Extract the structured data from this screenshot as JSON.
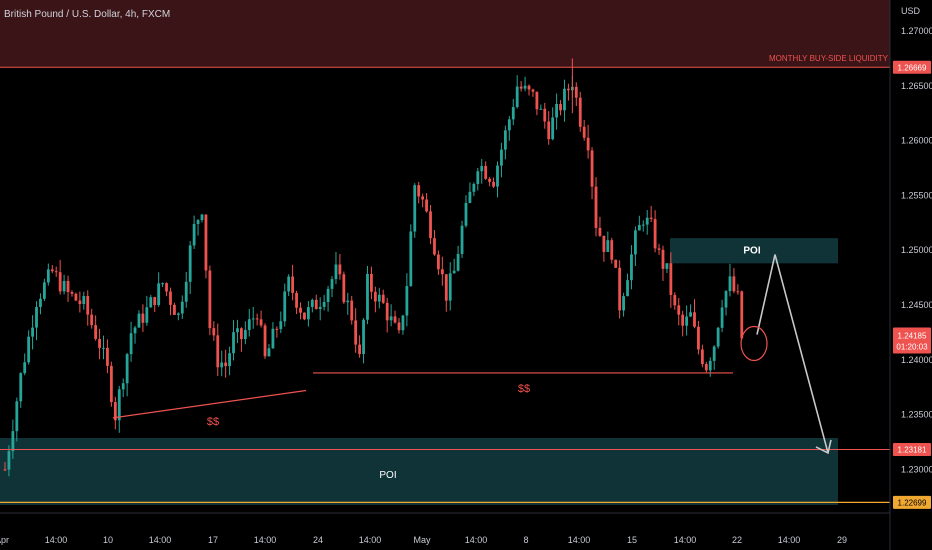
{
  "header": {
    "symbol_title": "British Pound / U.S. Dollar, 4h, FXCM",
    "currency": "USD"
  },
  "colors": {
    "bull": "#26a69a",
    "bear": "#ef5350",
    "supply_zone": "#3a1416",
    "poi_zone": "#0f3337",
    "liquidity_line": "#ef5350",
    "orange_line": "#f0a830",
    "arrow": "#c8c8c8"
  },
  "chart_data": {
    "type": "candlestick",
    "y_range": [
      1.2265,
      1.2728
    ],
    "y_ticks": [
      "1.27000",
      "1.26500",
      "1.26000",
      "1.25500",
      "1.25000",
      "1.24500",
      "1.24000",
      "1.23500",
      "1.23000"
    ],
    "x_ticks": [
      "Apr",
      "14:00",
      "10",
      "14:00",
      "17",
      "14:00",
      "24",
      "14:00",
      "May",
      "14:00",
      "8",
      "14:00",
      "15",
      "14:00",
      "22",
      "14:00",
      "29"
    ],
    "anchors": [
      {
        "i": 0,
        "p": 1.23
      },
      {
        "i": 4,
        "p": 1.2385
      },
      {
        "i": 8,
        "p": 1.2455
      },
      {
        "i": 12,
        "p": 1.248
      },
      {
        "i": 16,
        "p": 1.246
      },
      {
        "i": 20,
        "p": 1.245
      },
      {
        "i": 24,
        "p": 1.2415
      },
      {
        "i": 26,
        "p": 1.239
      },
      {
        "i": 28,
        "p": 1.235
      },
      {
        "i": 32,
        "p": 1.2425
      },
      {
        "i": 36,
        "p": 1.2445
      },
      {
        "i": 40,
        "p": 1.247
      },
      {
        "i": 44,
        "p": 1.244
      },
      {
        "i": 48,
        "p": 1.252
      },
      {
        "i": 50,
        "p": 1.254
      },
      {
        "i": 52,
        "p": 1.243
      },
      {
        "i": 54,
        "p": 1.24
      },
      {
        "i": 56,
        "p": 1.2395
      },
      {
        "i": 58,
        "p": 1.242
      },
      {
        "i": 60,
        "p": 1.242
      },
      {
        "i": 64,
        "p": 1.2445
      },
      {
        "i": 66,
        "p": 1.24
      },
      {
        "i": 70,
        "p": 1.244
      },
      {
        "i": 72,
        "p": 1.247
      },
      {
        "i": 76,
        "p": 1.244
      },
      {
        "i": 80,
        "p": 1.2455
      },
      {
        "i": 84,
        "p": 1.248
      },
      {
        "i": 88,
        "p": 1.244
      },
      {
        "i": 90,
        "p": 1.24
      },
      {
        "i": 92,
        "p": 1.247
      },
      {
        "i": 96,
        "p": 1.245
      },
      {
        "i": 100,
        "p": 1.242
      },
      {
        "i": 102,
        "p": 1.247
      },
      {
        "i": 104,
        "p": 1.256
      },
      {
        "i": 106,
        "p": 1.2545
      },
      {
        "i": 108,
        "p": 1.252
      },
      {
        "i": 110,
        "p": 1.249
      },
      {
        "i": 112,
        "p": 1.246
      },
      {
        "i": 114,
        "p": 1.248
      },
      {
        "i": 116,
        "p": 1.252
      },
      {
        "i": 120,
        "p": 1.258
      },
      {
        "i": 124,
        "p": 1.2565
      },
      {
        "i": 128,
        "p": 1.262
      },
      {
        "i": 130,
        "p": 1.265
      },
      {
        "i": 134,
        "p": 1.264
      },
      {
        "i": 138,
        "p": 1.261
      },
      {
        "i": 140,
        "p": 1.2625
      },
      {
        "i": 144,
        "p": 1.2655
      },
      {
        "i": 146,
        "p": 1.262
      },
      {
        "i": 148,
        "p": 1.26
      },
      {
        "i": 150,
        "p": 1.2525
      },
      {
        "i": 152,
        "p": 1.2505
      },
      {
        "i": 154,
        "p": 1.25
      },
      {
        "i": 156,
        "p": 1.245
      },
      {
        "i": 158,
        "p": 1.248
      },
      {
        "i": 160,
        "p": 1.251
      },
      {
        "i": 162,
        "p": 1.253
      },
      {
        "i": 164,
        "p": 1.252
      },
      {
        "i": 166,
        "p": 1.2495
      },
      {
        "i": 168,
        "p": 1.248
      },
      {
        "i": 170,
        "p": 1.2445
      },
      {
        "i": 172,
        "p": 1.243
      },
      {
        "i": 174,
        "p": 1.244
      },
      {
        "i": 176,
        "p": 1.241
      },
      {
        "i": 178,
        "p": 1.2395
      },
      {
        "i": 180,
        "p": 1.2415
      },
      {
        "i": 182,
        "p": 1.2455
      },
      {
        "i": 184,
        "p": 1.247
      },
      {
        "i": 186,
        "p": 1.2455
      },
      {
        "i": 187,
        "p": 1.242
      }
    ],
    "price_labels": {
      "liquidity": "1.26669",
      "last": "1.24185",
      "countdown": "01:20:03",
      "poi_line": "1.23181",
      "orange": "1.22699"
    },
    "annotations": {
      "top_zone": "MONTHLY BUY-SIDE LIQUIDITY",
      "poi_upper": "POI",
      "poi_lower": "POI",
      "sellside_left": "$$",
      "sellside_right": "$$"
    },
    "levels": {
      "liquidity": 1.26669,
      "last": 1.24185,
      "poi_line": 1.23181,
      "orange": 1.22699,
      "poi_upper_top": 1.2511,
      "poi_upper_bottom": 1.2488,
      "poi_lower_top": 1.2329,
      "poi_lower_bottom": 1.2271,
      "sellside_right": 1.2388,
      "target": 1.2315,
      "arrow_peak": 1.2496,
      "arrow_start": 1.2423
    },
    "sellside_left_points": [
      [
        113,
        1.2347
      ],
      [
        306,
        1.2372
      ]
    ],
    "sellside_right_x": [
      313,
      733
    ],
    "upper_poi_x": [
      670,
      838
    ],
    "arrow_x": [
      757,
      775,
      828
    ]
  }
}
